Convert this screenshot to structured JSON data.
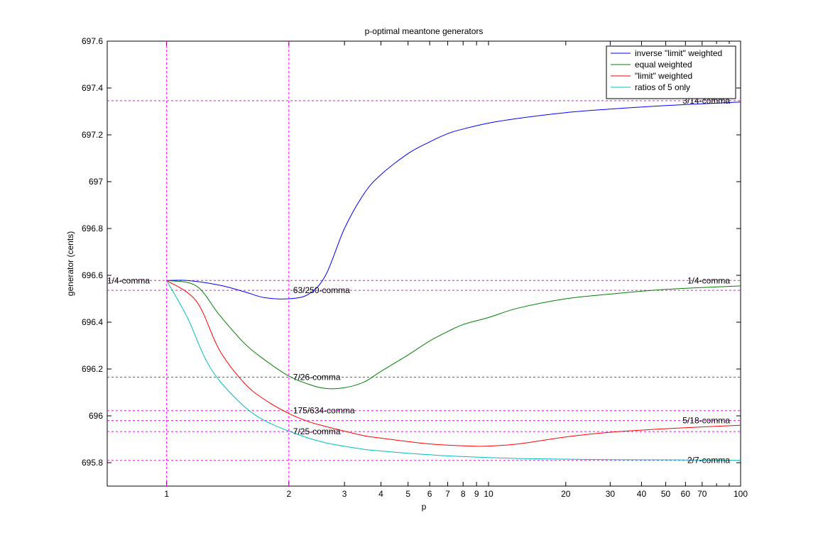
{
  "chart_data": {
    "type": "line",
    "title": "p-optimal meantone generators",
    "xlabel": "p",
    "ylabel": "generator (cents)",
    "x_scale": "log-of-reciprocal",
    "xlim": [
      0.8,
      100
    ],
    "ylim": [
      695.7,
      697.6
    ],
    "grid": false,
    "legend_position": "top-right",
    "x_ticks": [
      1,
      2,
      3,
      4,
      5,
      6,
      7,
      8,
      9,
      10,
      20,
      30,
      40,
      50,
      60,
      70,
      100
    ],
    "y_ticks": [
      695.8,
      696,
      696.2,
      696.4,
      696.6,
      696.8,
      697,
      697.2,
      697.4,
      697.6
    ],
    "y_tick_labels": [
      "695.8",
      "696",
      "696.2",
      "696.4",
      "696.6",
      "696.8",
      "697",
      "697.2",
      "697.4",
      "697.6"
    ],
    "vertical_reference_lines": [
      1,
      2
    ],
    "reference_lines": [
      {
        "y": 697.346,
        "label": "3/14-comma",
        "label_x": 100
      },
      {
        "y": 696.578,
        "label": "1/4-comma",
        "label_x": 1
      },
      {
        "y": 696.578,
        "label": "1/4-comma",
        "label_x": 100
      },
      {
        "y": 696.536,
        "label": "63/250-comma",
        "label_x": 2
      },
      {
        "y": 696.165,
        "label": "7/26-comma",
        "label_x": 2
      },
      {
        "y": 696.022,
        "label": "175/634-comma",
        "label_x": 2
      },
      {
        "y": 695.98,
        "label": "5/18-comma",
        "label_x": 100
      },
      {
        "y": 695.933,
        "label": "7/25-comma",
        "label_x": 2
      },
      {
        "y": 695.81,
        "label": "2/7-comma",
        "label_x": 100
      }
    ],
    "series": [
      {
        "name": "inverse \"limit\" weighted",
        "color": "#0000ff",
        "x": [
          1.0,
          1.1,
          1.3,
          1.5,
          1.7,
          2.0,
          2.3,
          2.6,
          3.0,
          3.5,
          4.0,
          5.0,
          6.0,
          7.0,
          8.0,
          10.0,
          13.0,
          20.0,
          30.0,
          50.0,
          100.0
        ],
        "y": [
          696.578,
          696.578,
          696.558,
          696.53,
          696.505,
          696.5,
          696.52,
          696.6,
          696.8,
          696.95,
          697.03,
          697.12,
          697.17,
          697.205,
          697.225,
          697.25,
          697.27,
          697.295,
          697.31,
          697.325,
          697.34
        ]
      },
      {
        "name": "equal weighted",
        "color": "#008000",
        "x": [
          1.0,
          1.15,
          1.3,
          1.5,
          1.7,
          2.0,
          2.3,
          2.6,
          3.0,
          3.5,
          4.0,
          5.0,
          6.0,
          7.0,
          8.0,
          10.0,
          13.0,
          20.0,
          30.0,
          50.0,
          100.0
        ],
        "y": [
          696.578,
          696.555,
          696.43,
          696.31,
          696.24,
          696.17,
          696.135,
          696.117,
          696.12,
          696.145,
          696.19,
          696.26,
          696.32,
          696.36,
          696.39,
          696.42,
          696.46,
          696.5,
          696.52,
          696.54,
          696.555
        ]
      },
      {
        "name": "\"limit\" weighted",
        "color": "#ff0000",
        "x": [
          1.0,
          1.15,
          1.3,
          1.5,
          1.7,
          2.0,
          2.3,
          2.6,
          3.0,
          3.5,
          4.0,
          5.0,
          6.0,
          7.0,
          8.0,
          9.0,
          10.0,
          13.0,
          20.0,
          30.0,
          50.0,
          100.0
        ],
        "y": [
          696.578,
          696.49,
          696.28,
          696.14,
          696.07,
          696.01,
          695.975,
          695.955,
          695.935,
          695.915,
          695.905,
          695.89,
          695.88,
          695.875,
          695.872,
          695.87,
          695.871,
          695.88,
          695.91,
          695.93,
          695.945,
          695.96
        ]
      },
      {
        "name": "ratios of 5 only",
        "color": "#00bfbf",
        "x": [
          1.0,
          1.1,
          1.2,
          1.3,
          1.5,
          1.7,
          2.0,
          2.3,
          2.6,
          3.0,
          3.5,
          4.0,
          5.0,
          6.0,
          7.0,
          8.0,
          10.0,
          13.0,
          20.0,
          30.0,
          50.0,
          100.0
        ],
        "y": [
          696.578,
          696.42,
          696.25,
          696.15,
          696.04,
          695.98,
          695.935,
          695.905,
          695.885,
          695.87,
          695.857,
          695.85,
          695.84,
          695.834,
          695.829,
          695.826,
          695.822,
          695.818,
          695.815,
          695.813,
          695.812,
          695.81
        ]
      }
    ]
  }
}
